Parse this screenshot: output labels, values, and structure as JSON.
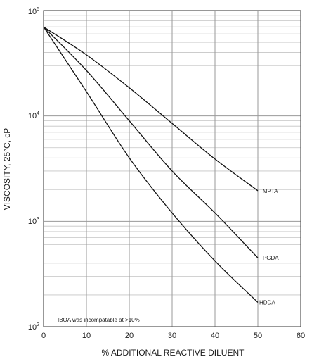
{
  "chart_data": {
    "type": "line",
    "xlabel": "% ADDITIONAL REACTIVE DILUENT",
    "ylabel": "VISCOSITY, 25°C, cP",
    "x_ticks": [
      "0",
      "10",
      "20",
      "30",
      "40",
      "50",
      "60"
    ],
    "y_ticks": [
      {
        "base": "10",
        "exp": "2"
      },
      {
        "base": "10",
        "exp": "3"
      },
      {
        "base": "10",
        "exp": "4"
      },
      {
        "base": "10",
        "exp": "5"
      }
    ],
    "xlim": [
      0,
      60
    ],
    "ylim": [
      100,
      100000
    ],
    "y_scale": "log",
    "grid": true,
    "annotation": "IBOA was incompatable at >10%",
    "series": [
      {
        "name": "TMPTA",
        "x": [
          0,
          10,
          20,
          30,
          40,
          50
        ],
        "values": [
          70000,
          38000,
          18500,
          8500,
          3900,
          1950
        ]
      },
      {
        "name": "TPGDA",
        "x": [
          0,
          10,
          20,
          30,
          40,
          50
        ],
        "values": [
          70000,
          27000,
          9000,
          3000,
          1200,
          450
        ]
      },
      {
        "name": "HDDA",
        "x": [
          0,
          10,
          20,
          30,
          40,
          50
        ],
        "values": [
          70000,
          17000,
          4000,
          1200,
          420,
          170
        ]
      }
    ]
  },
  "colors": {
    "line": "#111111",
    "major_grid": "#9a9a9a",
    "minor_grid": "#c4c4c4",
    "frame": "#555555"
  }
}
